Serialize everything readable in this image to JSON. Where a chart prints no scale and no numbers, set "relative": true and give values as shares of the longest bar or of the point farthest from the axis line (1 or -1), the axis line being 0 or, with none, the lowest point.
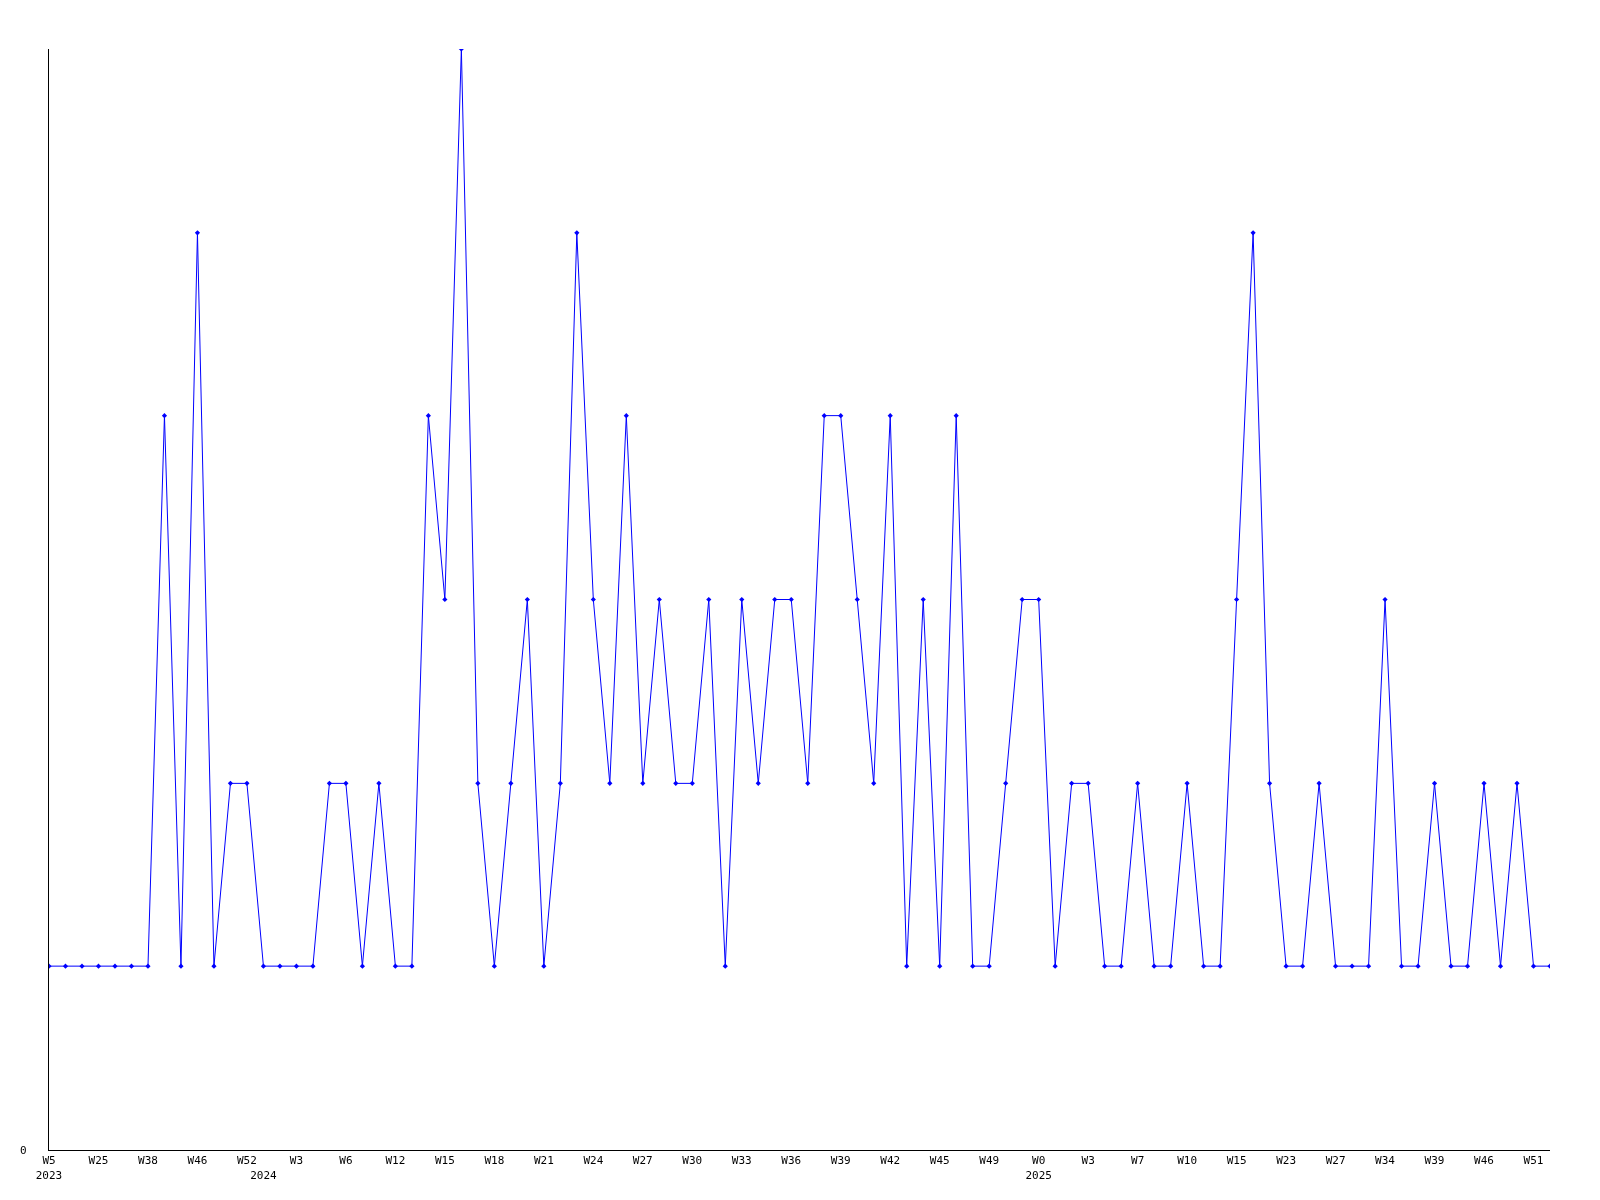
{
  "chart_data": {
    "type": "line",
    "relative": true,
    "color": "#0000ff",
    "marker": "diamond",
    "annotations": [
      "0"
    ],
    "categories": [
      "W5\n2023",
      null,
      null,
      "W25",
      null,
      null,
      "W38",
      null,
      null,
      "W46",
      null,
      null,
      "W52",
      "\n2024",
      null,
      "W3",
      null,
      null,
      "W6",
      null,
      null,
      "W12",
      null,
      null,
      "W15",
      null,
      null,
      "W18",
      null,
      null,
      "W21",
      null,
      null,
      "W24",
      null,
      null,
      "W27",
      null,
      null,
      "W30",
      null,
      null,
      "W33",
      null,
      null,
      "W36",
      null,
      null,
      "W39",
      null,
      null,
      "W42",
      null,
      null,
      "W45",
      null,
      null,
      "W49",
      null,
      null,
      "W0\n2025",
      null,
      null,
      "W3",
      null,
      null,
      "W7",
      null,
      null,
      "W10",
      null,
      null,
      "W15",
      null,
      null,
      "W23",
      null,
      null,
      "W27",
      null,
      null,
      "W34",
      null,
      null,
      "W39",
      null,
      null,
      "W46",
      null,
      null,
      "W51",
      null
    ],
    "values": [
      0.167,
      0.167,
      0.167,
      0.167,
      0.167,
      0.167,
      0.167,
      0.667,
      0.167,
      0.833,
      0.167,
      0.333,
      0.333,
      0.167,
      0.167,
      0.167,
      0.167,
      0.333,
      0.333,
      0.167,
      0.333,
      0.167,
      0.167,
      0.667,
      0.5,
      1,
      0.333,
      0.167,
      0.333,
      0.5,
      0.167,
      0.333,
      0.833,
      0.5,
      0.333,
      0.667,
      0.333,
      0.5,
      0.333,
      0.333,
      0.5,
      0.167,
      0.5,
      0.333,
      0.5,
      0.5,
      0.333,
      0.667,
      0.667,
      0.5,
      0.333,
      0.667,
      0.167,
      0.5,
      0.167,
      0.667,
      0.167,
      0.167,
      0.333,
      0.5,
      0.5,
      0.167,
      0.333,
      0.333,
      0.167,
      0.167,
      0.333,
      0.167,
      0.167,
      0.333,
      0.167,
      0.167,
      0.5,
      0.833,
      0.333,
      0.167,
      0.167,
      0.333,
      0.167,
      0.167,
      0.167,
      0.5,
      0.167,
      0.167,
      0.333,
      0.167,
      0.167,
      0.333,
      0.167,
      0.333,
      0.167,
      0.167
    ]
  }
}
